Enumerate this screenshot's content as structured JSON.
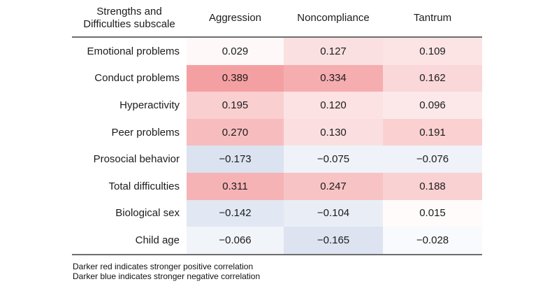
{
  "chart_data": {
    "type": "heatmap",
    "row_header_label": "Strengths and Difficulties subscale",
    "columns": [
      "Aggression",
      "Noncompliance",
      "Tantrum"
    ],
    "rows": [
      "Emotional problems",
      "Conduct problems",
      "Hyperactivity",
      "Peer problems",
      "Prosocial behavior",
      "Total difficulties",
      "Biological sex",
      "Child age"
    ],
    "values": [
      [
        0.029,
        0.127,
        0.109
      ],
      [
        0.389,
        0.334,
        0.162
      ],
      [
        0.195,
        0.12,
        0.096
      ],
      [
        0.27,
        0.13,
        0.191
      ],
      [
        -0.173,
        -0.075,
        -0.076
      ],
      [
        0.311,
        0.247,
        0.188
      ],
      [
        -0.142,
        -0.104,
        0.015
      ],
      [
        -0.066,
        -0.165,
        -0.028
      ]
    ],
    "display_values": [
      [
        "0.029",
        "0.127",
        "0.109"
      ],
      [
        "0.389",
        "0.334",
        "0.162"
      ],
      [
        "0.195",
        "0.120",
        "0.096"
      ],
      [
        "0.270",
        "0.130",
        "0.191"
      ],
      [
        "−0.173",
        "−0.075",
        "−0.076"
      ],
      [
        "0.311",
        "0.247",
        "0.188"
      ],
      [
        "−0.142",
        "−0.104",
        "0.015"
      ],
      [
        "−0.066",
        "−0.165",
        "−0.028"
      ]
    ],
    "colormap": {
      "zero_color": "#ffffff",
      "positive_anchor": {
        "value": 0.389,
        "color": "#f4a0a2"
      },
      "negative_anchor": {
        "value": 0.173,
        "color": "#dbe2f0"
      },
      "rule_color": "#6e6e6e"
    },
    "footnotes": [
      "Darker red indicates stronger positive correlation",
      "Darker blue indicates stronger negative correlation"
    ],
    "legend_position": "none",
    "grid": false
  }
}
